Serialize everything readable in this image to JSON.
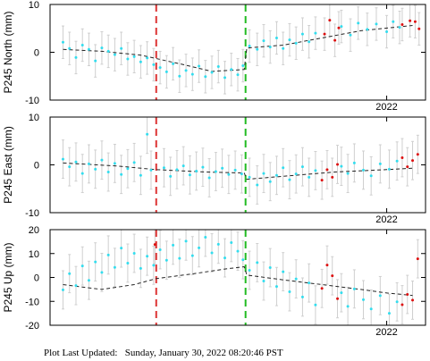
{
  "colors": {
    "cyan": "#33ddee",
    "red": "#dd1111",
    "errorbar": "#cfcfcf",
    "frame": "#000000",
    "trend": "#222222",
    "event1": "#dd3333",
    "event2": "#22bb22"
  },
  "footer": {
    "label": "Plot Last Updated:",
    "value": "Sunday, January 30, 2022 08:20:46 PST"
  },
  "chart_data": [
    {
      "type": "scatter",
      "ylabel": "P245 North (mm)",
      "yticks": [
        10,
        0,
        -10
      ],
      "ylim": [
        -10,
        10
      ],
      "xlim": [
        2019.4,
        2022.3
      ],
      "x_tick_label": "2022",
      "x_tick_value": 2022,
      "events": [
        2020.22,
        2020.91
      ],
      "error_mm": 3.4,
      "trend": [
        [
          2019.5,
          0.6
        ],
        [
          2019.8,
          0.2
        ],
        [
          2020.1,
          -0.6
        ],
        [
          2020.4,
          -2.4
        ],
        [
          2020.65,
          -4.0
        ],
        [
          2020.9,
          -3.6
        ],
        [
          2020.92,
          0.9
        ],
        [
          2021.2,
          1.5
        ],
        [
          2021.5,
          3.0
        ],
        [
          2021.8,
          4.5
        ],
        [
          2022.2,
          5.6
        ]
      ],
      "cyan_points": [
        [
          2019.5,
          2.1
        ],
        [
          2019.55,
          0.8
        ],
        [
          2019.6,
          -1.1
        ],
        [
          2019.65,
          1.5
        ],
        [
          2019.7,
          0.6
        ],
        [
          2019.75,
          -1.8
        ],
        [
          2019.8,
          0.9
        ],
        [
          2019.85,
          0.2
        ],
        [
          2019.9,
          -0.5
        ],
        [
          2019.95,
          0.8
        ],
        [
          2020.0,
          -1.4
        ],
        [
          2020.05,
          -0.9
        ],
        [
          2020.1,
          -2.0
        ],
        [
          2020.15,
          -1.2
        ],
        [
          2020.2,
          -2.6
        ],
        [
          2020.25,
          -3.2
        ],
        [
          2020.3,
          -4.1
        ],
        [
          2020.35,
          -2.4
        ],
        [
          2020.4,
          -5.0
        ],
        [
          2020.45,
          -3.8
        ],
        [
          2020.5,
          -4.6
        ],
        [
          2020.55,
          -2.9
        ],
        [
          2020.6,
          -5.1
        ],
        [
          2020.65,
          -4.2
        ],
        [
          2020.7,
          -3.0
        ],
        [
          2020.75,
          -5.3
        ],
        [
          2020.8,
          -3.6
        ],
        [
          2020.85,
          -4.7
        ],
        [
          2020.89,
          -2.8
        ],
        [
          2020.94,
          1.3
        ],
        [
          2021.0,
          0.6
        ],
        [
          2021.05,
          2.4
        ],
        [
          2021.1,
          1.1
        ],
        [
          2021.15,
          3.0
        ],
        [
          2021.2,
          0.8
        ],
        [
          2021.25,
          2.6
        ],
        [
          2021.3,
          1.9
        ],
        [
          2021.35,
          3.8
        ],
        [
          2021.4,
          2.2
        ],
        [
          2021.45,
          4.0
        ],
        [
          2021.65,
          5.4
        ],
        [
          2021.72,
          3.6
        ],
        [
          2021.78,
          6.1
        ],
        [
          2021.85,
          4.8
        ],
        [
          2021.92,
          5.9
        ],
        [
          2022.0,
          4.3
        ],
        [
          2022.05,
          6.4
        ],
        [
          2022.1,
          5.2
        ]
      ],
      "red_points": [
        [
          2021.52,
          3.8
        ],
        [
          2021.56,
          6.7
        ],
        [
          2021.6,
          2.5
        ],
        [
          2021.63,
          5.1
        ],
        [
          2022.12,
          5.8
        ],
        [
          2022.18,
          6.6
        ],
        [
          2022.22,
          6.4
        ],
        [
          2022.25,
          4.9
        ]
      ]
    },
    {
      "type": "scatter",
      "ylabel": "P245 East (mm)",
      "yticks": [
        10,
        0,
        -10
      ],
      "ylim": [
        -10,
        10
      ],
      "xlim": [
        2019.4,
        2022.3
      ],
      "x_tick_label": "2022",
      "x_tick_value": 2022,
      "events": [
        2020.22,
        2020.91
      ],
      "error_mm": 4.0,
      "trend": [
        [
          2019.5,
          0.4
        ],
        [
          2019.9,
          -0.2
        ],
        [
          2020.22,
          -1.0
        ],
        [
          2020.6,
          -1.5
        ],
        [
          2020.9,
          -1.7
        ],
        [
          2020.92,
          -3.0
        ],
        [
          2021.2,
          -2.4
        ],
        [
          2021.6,
          -1.5
        ],
        [
          2022.0,
          -1.0
        ],
        [
          2022.2,
          -0.7
        ]
      ],
      "cyan_points": [
        [
          2019.5,
          1.2
        ],
        [
          2019.55,
          -0.4
        ],
        [
          2019.6,
          0.6
        ],
        [
          2019.65,
          -1.8
        ],
        [
          2019.7,
          0.2
        ],
        [
          2019.75,
          -0.9
        ],
        [
          2019.8,
          1.0
        ],
        [
          2019.85,
          -1.5
        ],
        [
          2019.9,
          0.3
        ],
        [
          2019.95,
          -2.0
        ],
        [
          2020.0,
          -0.8
        ],
        [
          2020.05,
          0.5
        ],
        [
          2020.1,
          -2.2
        ],
        [
          2020.15,
          6.4
        ],
        [
          2020.18,
          -1.1
        ],
        [
          2020.28,
          -0.6
        ],
        [
          2020.33,
          -2.4
        ],
        [
          2020.38,
          -1.0
        ],
        [
          2020.43,
          -0.2
        ],
        [
          2020.48,
          -2.1
        ],
        [
          2020.53,
          -1.3
        ],
        [
          2020.58,
          -0.5
        ],
        [
          2020.63,
          -2.7
        ],
        [
          2020.68,
          -1.4
        ],
        [
          2020.73,
          -0.7
        ],
        [
          2020.78,
          -2.0
        ],
        [
          2020.83,
          -1.1
        ],
        [
          2020.88,
          -1.9
        ],
        [
          2020.94,
          -2.6
        ],
        [
          2021.0,
          -4.2
        ],
        [
          2021.05,
          -1.8
        ],
        [
          2021.1,
          -3.5
        ],
        [
          2021.15,
          -2.2
        ],
        [
          2021.2,
          -0.6
        ],
        [
          2021.25,
          -3.1
        ],
        [
          2021.3,
          -1.9
        ],
        [
          2021.35,
          -0.4
        ],
        [
          2021.4,
          -2.6
        ],
        [
          2021.45,
          -1.2
        ],
        [
          2021.65,
          -0.3
        ],
        [
          2021.7,
          -1.8
        ],
        [
          2021.75,
          0.4
        ],
        [
          2021.82,
          -1.1
        ],
        [
          2021.88,
          -2.3
        ],
        [
          2021.95,
          0.2
        ],
        [
          2022.02,
          -0.9
        ],
        [
          2022.08,
          0.8
        ]
      ],
      "red_points": [
        [
          2021.5,
          -3.2
        ],
        [
          2021.54,
          -1.0
        ],
        [
          2021.58,
          -2.6
        ],
        [
          2021.62,
          0.1
        ],
        [
          2022.12,
          1.5
        ],
        [
          2022.16,
          -0.4
        ],
        [
          2022.2,
          0.9
        ],
        [
          2022.24,
          2.2
        ]
      ]
    },
    {
      "type": "scatter",
      "ylabel": "P245 Up (mm)",
      "yticks": [
        20,
        10,
        0,
        -10,
        -20
      ],
      "ylim": [
        -20,
        20
      ],
      "xlim": [
        2019.4,
        2022.3
      ],
      "x_tick_label": "2022",
      "x_tick_value": 2022,
      "events": [
        2020.22,
        2020.91
      ],
      "error_mm": 8.0,
      "trend": [
        [
          2019.5,
          -3.0
        ],
        [
          2019.8,
          -5.0
        ],
        [
          2020.05,
          -3.0
        ],
        [
          2020.22,
          -0.5
        ],
        [
          2020.5,
          1.5
        ],
        [
          2020.75,
          3.5
        ],
        [
          2020.9,
          4.5
        ],
        [
          2020.92,
          1.0
        ],
        [
          2021.2,
          -1.0
        ],
        [
          2021.5,
          -3.0
        ],
        [
          2021.8,
          -5.0
        ],
        [
          2022.0,
          -6.5
        ],
        [
          2022.2,
          -7.5
        ]
      ],
      "cyan_points": [
        [
          2019.5,
          -5.2
        ],
        [
          2019.55,
          1.6
        ],
        [
          2019.6,
          -3.4
        ],
        [
          2019.65,
          4.8
        ],
        [
          2019.7,
          -1.2
        ],
        [
          2019.75,
          6.5
        ],
        [
          2019.8,
          2.1
        ],
        [
          2019.85,
          9.4
        ],
        [
          2019.9,
          4.2
        ],
        [
          2019.95,
          12.3
        ],
        [
          2020.0,
          6.0
        ],
        [
          2020.05,
          10.1
        ],
        [
          2020.1,
          3.8
        ],
        [
          2020.15,
          8.9
        ],
        [
          2020.2,
          5.1
        ],
        [
          2020.25,
          11.6
        ],
        [
          2020.3,
          7.2
        ],
        [
          2020.35,
          13.5
        ],
        [
          2020.4,
          8.0
        ],
        [
          2020.45,
          15.2
        ],
        [
          2020.5,
          9.1
        ],
        [
          2020.55,
          12.4
        ],
        [
          2020.6,
          16.8
        ],
        [
          2020.65,
          10.3
        ],
        [
          2020.7,
          13.9
        ],
        [
          2020.75,
          8.2
        ],
        [
          2020.8,
          14.6
        ],
        [
          2020.85,
          11.0
        ],
        [
          2020.89,
          7.4
        ],
        [
          2020.94,
          3.0
        ],
        [
          2021.0,
          6.2
        ],
        [
          2021.05,
          -1.5
        ],
        [
          2021.1,
          4.1
        ],
        [
          2021.15,
          -3.8
        ],
        [
          2021.2,
          2.4
        ],
        [
          2021.25,
          -6.0
        ],
        [
          2021.3,
          -0.6
        ],
        [
          2021.35,
          -8.2
        ],
        [
          2021.4,
          -2.3
        ],
        [
          2021.45,
          -11.5
        ],
        [
          2021.65,
          -6.4
        ],
        [
          2021.7,
          -12.1
        ],
        [
          2021.75,
          -4.8
        ],
        [
          2021.82,
          -9.3
        ],
        [
          2021.88,
          -13.2
        ],
        [
          2021.95,
          -7.6
        ],
        [
          2022.02,
          -15.0
        ],
        [
          2022.08,
          -10.2
        ]
      ],
      "red_points": [
        [
          2020.21,
          13.8
        ],
        [
          2021.5,
          -4.6
        ],
        [
          2021.54,
          5.2
        ],
        [
          2021.58,
          0.7
        ],
        [
          2021.62,
          -8.9
        ],
        [
          2022.12,
          -11.4
        ],
        [
          2022.16,
          -7.1
        ],
        [
          2022.2,
          -9.5
        ],
        [
          2022.24,
          7.8
        ]
      ]
    }
  ]
}
